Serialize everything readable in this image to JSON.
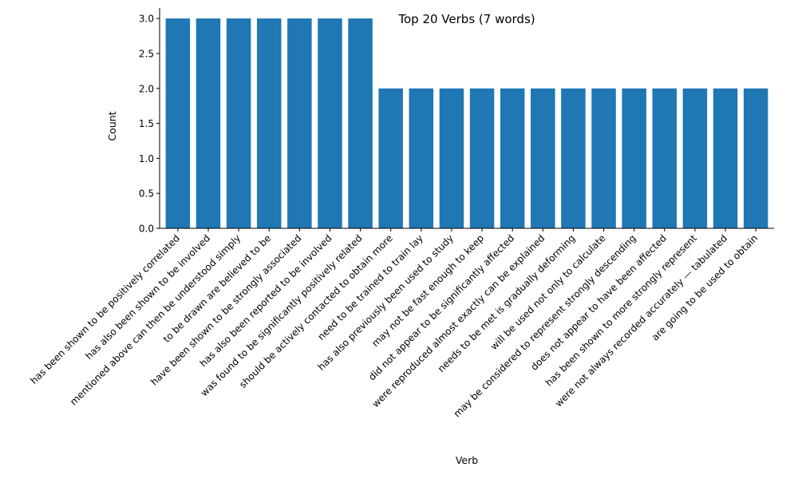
{
  "chart_data": {
    "type": "bar",
    "title": "Top 20 Verbs (7 words)",
    "xlabel": "Verb",
    "ylabel": "Count",
    "ylim": [
      0,
      3.15
    ],
    "yticks": [
      "0.0",
      "0.5",
      "1.0",
      "1.5",
      "2.0",
      "2.5",
      "3.0"
    ],
    "grid": false,
    "color": "#1f77b4",
    "categories": [
      "has been shown to be positively correlated",
      "has also been shown to be involved",
      "mentioned above can then be understood simply",
      "to be drawn are believed to be",
      "have been shown to be strongly associated",
      "has also been reported to be involved",
      "was found to be significantly positively related",
      "should be actively contacted to obtain more",
      "need to be trained to train lay",
      "has also previously been used to study",
      "may not be fast enough to keep",
      "did not appear to be significantly affected",
      "were reproduced almost exactly can be explained",
      "needs to be met is gradually deforming",
      "will be used not only to calculate",
      "may be considered to represent strongly descending",
      "does not appear to have been affected",
      "has been shown to more strongly represent",
      "were not always recorded accurately — tabulated",
      "are going to be used to obtain"
    ],
    "values": [
      3,
      3,
      3,
      3,
      3,
      3,
      3,
      2,
      2,
      2,
      2,
      2,
      2,
      2,
      2,
      2,
      2,
      2,
      2,
      2
    ]
  }
}
